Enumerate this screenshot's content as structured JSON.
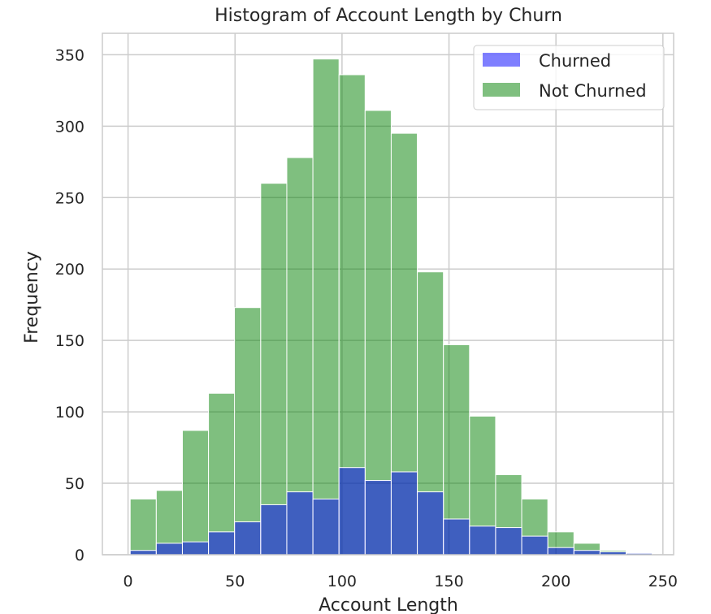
{
  "chart_data": {
    "type": "bar",
    "title": "Histogram of Account Length by Churn",
    "xlabel": "Account Length",
    "ylabel": "Frequency",
    "xlim": [
      -12,
      255
    ],
    "ylim": [
      0,
      365
    ],
    "xticks": [
      0,
      50,
      100,
      150,
      200,
      250
    ],
    "yticks": [
      0,
      50,
      100,
      150,
      200,
      250,
      300,
      350
    ],
    "grid": true,
    "legend_position": "top-right",
    "bin_edges": [
      1,
      13.2,
      25.4,
      37.6,
      49.8,
      62,
      74.2,
      86.4,
      98.6,
      110.8,
      123,
      135.2,
      147.4,
      159.6,
      171.8,
      184,
      196.2,
      208.4,
      220.6,
      232.8,
      245
    ],
    "series": [
      {
        "name": "Churned",
        "color": "#0000ff",
        "values": [
          3,
          8,
          9,
          16,
          23,
          35,
          44,
          39,
          61,
          52,
          58,
          44,
          25,
          20,
          19,
          13,
          5,
          3,
          2,
          1
        ]
      },
      {
        "name": "Not Churned",
        "color": "#008000",
        "values": [
          39,
          45,
          87,
          113,
          173,
          260,
          278,
          347,
          336,
          311,
          295,
          198,
          147,
          97,
          56,
          39,
          16,
          8,
          3,
          1
        ]
      }
    ]
  }
}
